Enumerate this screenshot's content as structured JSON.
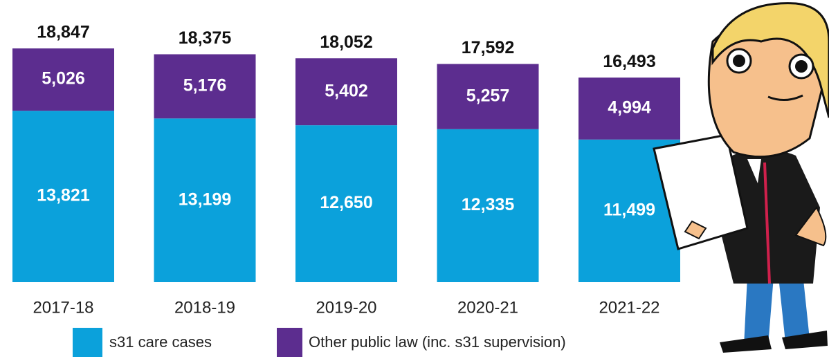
{
  "chart_data": {
    "type": "stacked_bar",
    "categories": [
      "2017-18",
      "2018-19",
      "2019-20",
      "2020-21",
      "2021-22"
    ],
    "series": [
      {
        "name": "s31 care cases",
        "color": "#0ba1db",
        "values": [
          13821,
          13199,
          12650,
          12335,
          11499
        ],
        "value_labels": [
          "13,821",
          "13,199",
          "12,650",
          "12,335",
          "11,499"
        ]
      },
      {
        "name": "Other public law (inc. s31 supervision)",
        "color": "#5c2d8f",
        "values": [
          5026,
          5176,
          5402,
          5257,
          4994
        ],
        "value_labels": [
          "5,026",
          "5,176",
          "5,402",
          "5,257",
          "4,994"
        ]
      }
    ],
    "totals": {
      "values": [
        18847,
        18375,
        18052,
        17592,
        16493
      ],
      "value_labels": [
        "18,847",
        "18,375",
        "18,052",
        "17,592",
        "16,493"
      ]
    }
  }
}
